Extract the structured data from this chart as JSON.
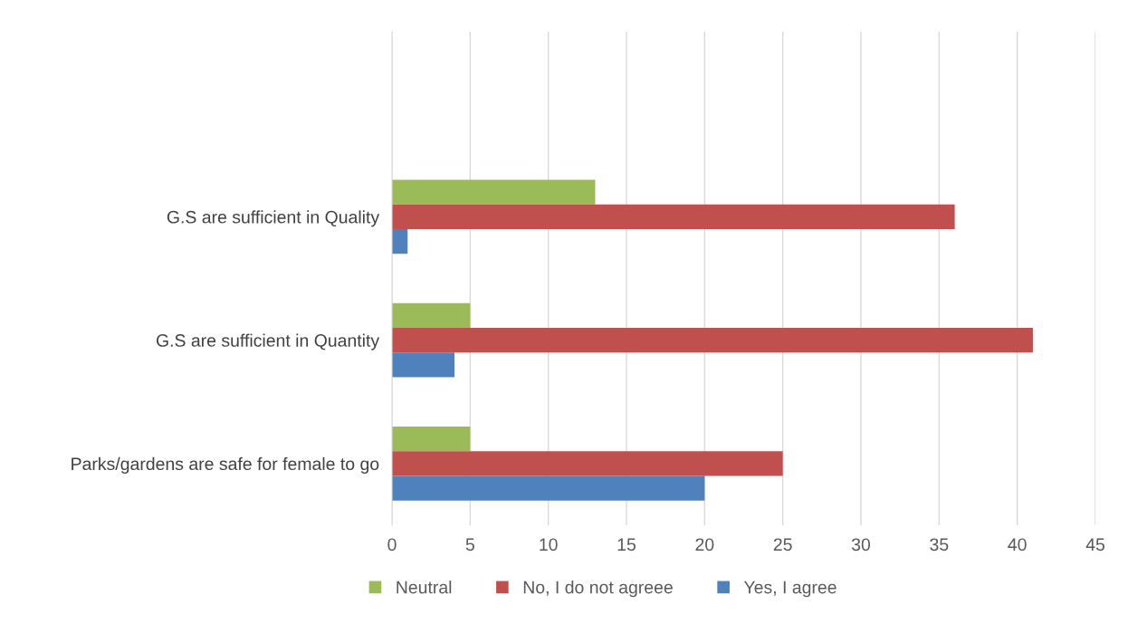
{
  "chart_data": {
    "type": "bar",
    "orientation": "horizontal",
    "categories": [
      null,
      "G.S are sufficient in Quality",
      "G.S are sufficient in Quantity",
      "Parks/gardens are safe for female to go"
    ],
    "series": [
      {
        "name": "Neutral",
        "color": "#9bbb59",
        "values": [
          null,
          13,
          5,
          5
        ]
      },
      {
        "name": "No, I do not agreee",
        "color": "#c0504d",
        "values": [
          null,
          36,
          41,
          25
        ]
      },
      {
        "name": "Yes, I agree",
        "color": "#4f81bd",
        "values": [
          null,
          1,
          4,
          20
        ]
      }
    ],
    "xlim": [
      0,
      45
    ],
    "xticks": [
      0,
      5,
      10,
      15,
      20,
      25,
      30,
      35,
      40,
      45
    ],
    "grid": "x",
    "legend": "bottom"
  }
}
